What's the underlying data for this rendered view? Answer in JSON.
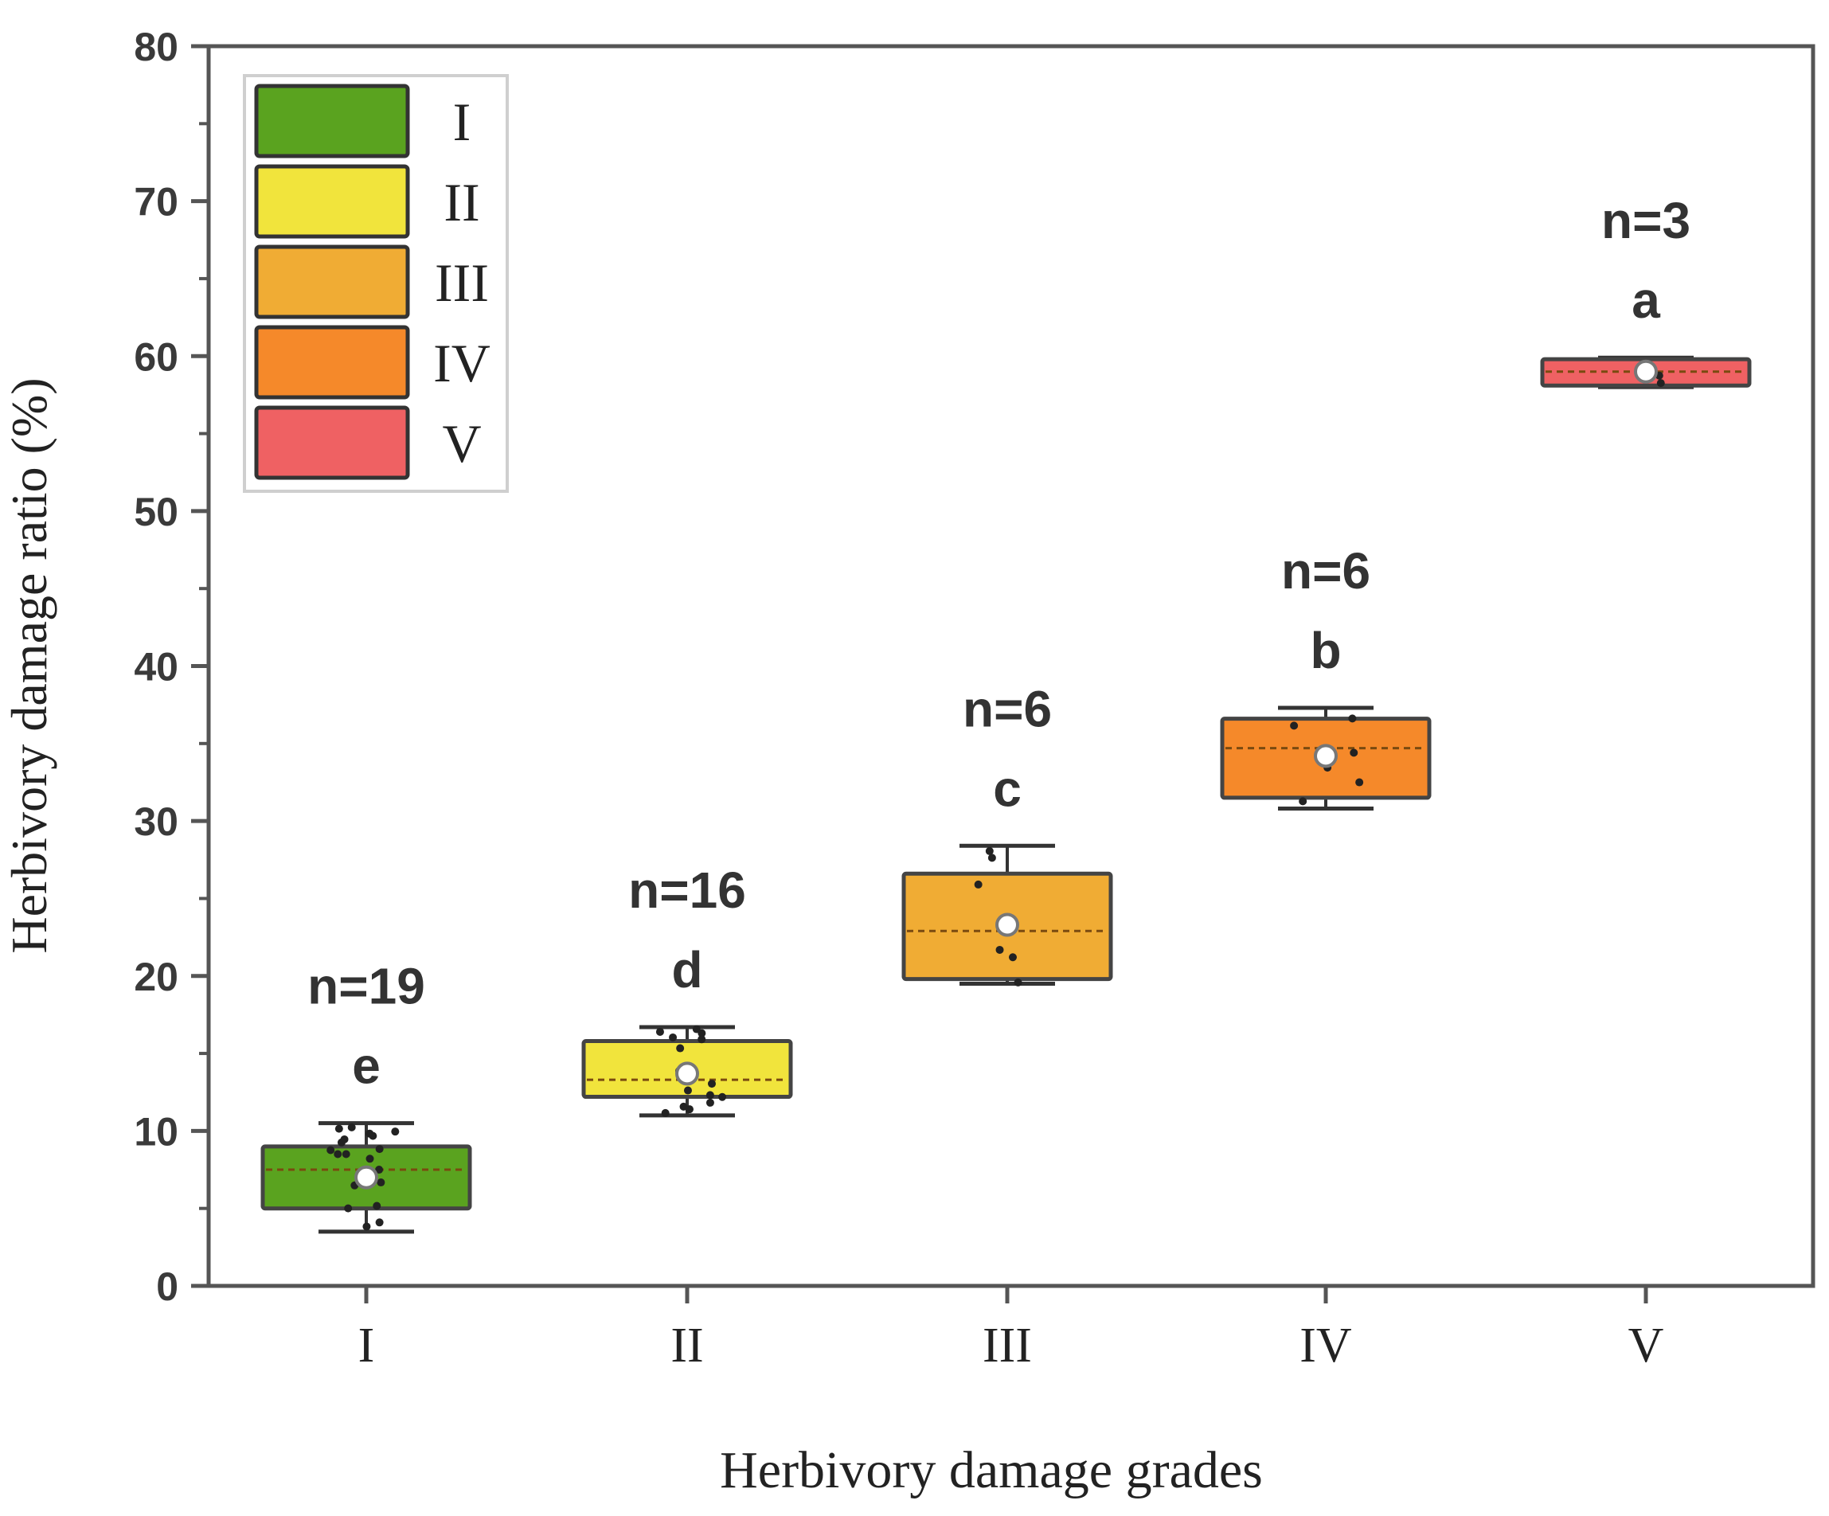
{
  "chart_data": {
    "type": "box",
    "title": "",
    "xlabel": "Herbivory damage grades",
    "ylabel": "Herbivory damage ratio (%)",
    "ylim": [
      0,
      80
    ],
    "yticks": [
      "0",
      "10",
      "20",
      "30",
      "40",
      "50",
      "60",
      "70",
      "80"
    ],
    "categories": [
      "I",
      "II",
      "III",
      "IV",
      "V"
    ],
    "series": [
      {
        "name": "I",
        "color": "#5aa31f",
        "q1": 5,
        "median": 7.5,
        "q3": 9,
        "mean": 7,
        "whisker_low": 3.5,
        "whisker_high": 10.5,
        "n_label": "n=19",
        "letter": "e"
      },
      {
        "name": "II",
        "color": "#f1e43c",
        "q1": 12.2,
        "median": 13.3,
        "q3": 15.8,
        "mean": 13.7,
        "whisker_low": 11,
        "whisker_high": 16.7,
        "n_label": "n=16",
        "letter": "d"
      },
      {
        "name": "III",
        "color": "#f0ac34",
        "q1": 19.8,
        "median": 22.9,
        "q3": 26.6,
        "mean": 23.3,
        "whisker_low": 19.5,
        "whisker_high": 28.4,
        "n_label": "n=6",
        "letter": "c"
      },
      {
        "name": "IV",
        "color": "#f5892a",
        "q1": 31.5,
        "median": 34.7,
        "q3": 36.6,
        "mean": 34.2,
        "whisker_low": 30.8,
        "whisker_high": 37.3,
        "n_label": "n=6",
        "letter": "b"
      },
      {
        "name": "V",
        "color": "#ef6163",
        "q1": 58.1,
        "median": 59,
        "q3": 59.8,
        "mean": 59,
        "whisker_low": 58,
        "whisker_high": 59.9,
        "n_label": "n=3",
        "letter": "a"
      }
    ],
    "legend": {
      "position": "top-left",
      "entries": [
        "I",
        "II",
        "III",
        "IV",
        "V"
      ]
    }
  }
}
